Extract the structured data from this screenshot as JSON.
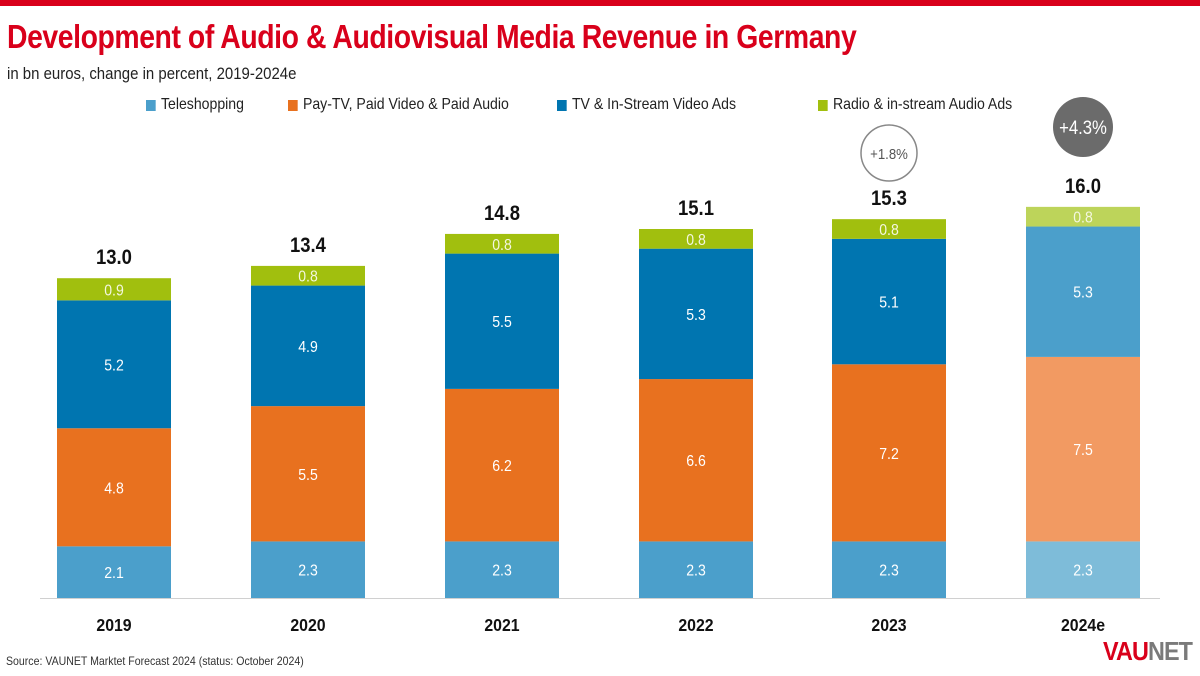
{
  "header": {
    "title": "Development of Audio & Audiovisual Media Revenue in Germany",
    "subtitle": "in bn euros, change in percent, 2019-2024e"
  },
  "footer": {
    "source": "Source: VAUNET Marktet Forecast 2024 (status: October 2024)",
    "logo_part1": "VAU",
    "logo_part2": "NET"
  },
  "colors": {
    "brand_red": "#d9001b",
    "teleshopping": "#4b9fcb",
    "paytv": "#e8711f",
    "tvads": "#0075b0",
    "radio": "#a1bf0e",
    "teleshopping_forecast": "#7ebcd9",
    "paytv_forecast": "#f29a62",
    "tvads_forecast": "#4b9fcb",
    "radio_forecast": "#bdd45a",
    "badge_dark": "#6b6b6b"
  },
  "chart_data": {
    "type": "bar",
    "stacked": true,
    "title": "Development of Audio & Audiovisual Media Revenue in Germany",
    "subtitle": "in bn euros, change in percent, 2019-2024e",
    "xlabel": "",
    "ylabel": "",
    "ylim": [
      0,
      16.5
    ],
    "grid": false,
    "legend_position": "top",
    "categories": [
      "2019",
      "2020",
      "2021",
      "2022",
      "2023",
      "2024e"
    ],
    "series": [
      {
        "name": "Teleshopping",
        "key": "teleshopping",
        "values": [
          2.1,
          2.3,
          2.3,
          2.3,
          2.3,
          2.3
        ]
      },
      {
        "name": "Pay-TV, Paid Video & Paid Audio",
        "key": "paytv",
        "values": [
          4.8,
          5.5,
          6.2,
          6.6,
          7.2,
          7.5
        ]
      },
      {
        "name": "TV & In-Stream Video Ads",
        "key": "tvads",
        "values": [
          5.2,
          4.9,
          5.5,
          5.3,
          5.1,
          5.3
        ]
      },
      {
        "name": "Radio & in-stream Audio Ads",
        "key": "radio",
        "values": [
          0.9,
          0.8,
          0.8,
          0.8,
          0.8,
          0.8
        ]
      }
    ],
    "value_labels": [
      [
        "2.1",
        "2.3",
        "2.3",
        "2.3",
        "2.3",
        "2.3"
      ],
      [
        "4.8",
        "5.5",
        "6.2",
        "6.6",
        "7.2",
        "7.5"
      ],
      [
        "5.2",
        "4.9",
        "5.5",
        "5.3",
        "5.1",
        "5.3"
      ],
      [
        "0.9",
        "0.8",
        "0.8",
        "0.8",
        "0.8",
        "0.8"
      ]
    ],
    "totals": [
      13.0,
      13.4,
      14.8,
      15.1,
      15.3,
      16.0
    ],
    "total_labels": [
      "13.0",
      "13.4",
      "14.8",
      "15.1",
      "15.3",
      "16.0"
    ],
    "forecast_category": "2024e",
    "annotations": [
      {
        "category": "2023",
        "text": "+1.8%",
        "style": "outlined-circle"
      },
      {
        "category": "2024e",
        "text": "+4.3%",
        "style": "filled-circle"
      }
    ]
  },
  "legend": [
    {
      "label": "Teleshopping",
      "key": "teleshopping"
    },
    {
      "label": "Pay-TV, Paid Video & Paid Audio",
      "key": "paytv"
    },
    {
      "label": "TV & In-Stream Video Ads",
      "key": "tvads"
    },
    {
      "label": "Radio & in-stream Audio Ads",
      "key": "radio"
    }
  ]
}
